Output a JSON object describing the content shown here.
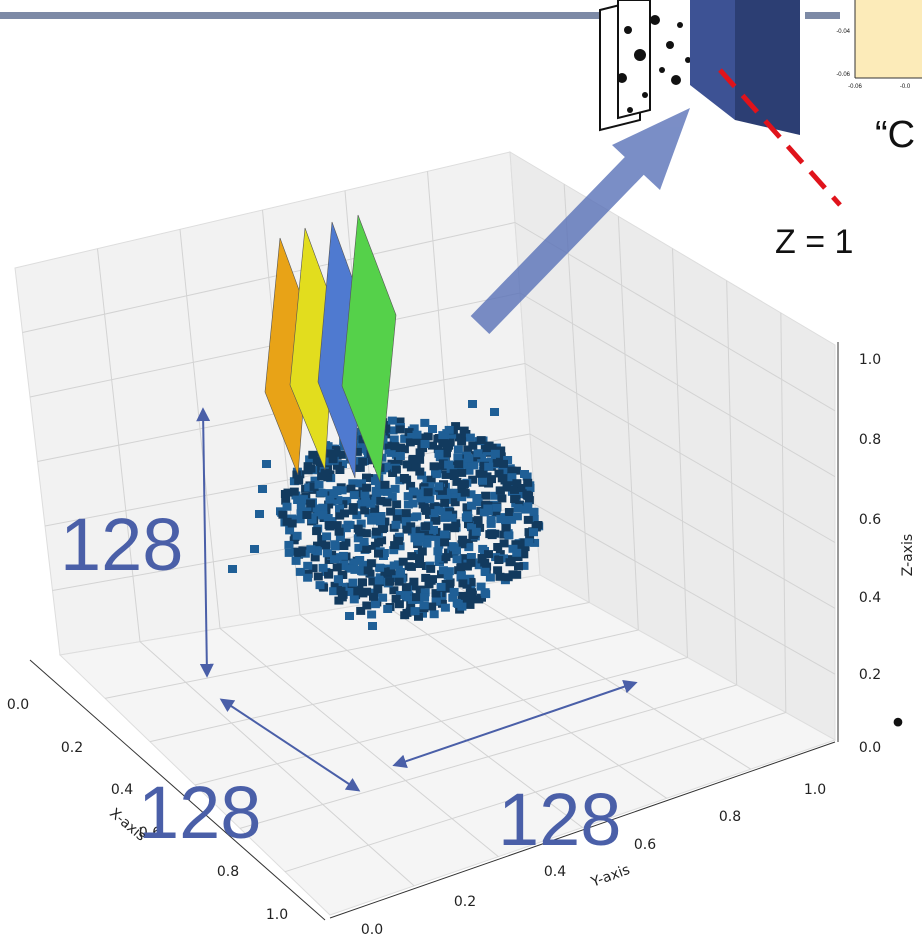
{
  "inset": {
    "ytick_top": "-0.04",
    "ytick_bottom": "-0.06",
    "xtick_left": "-0.06",
    "xtick_right": "-0.0"
  },
  "caption_fragment": "“C",
  "z_label": "Z = 1",
  "plot": {
    "x_axis_label": "X-axis",
    "y_axis_label": "Y-axis",
    "z_axis_label": "Z-axis",
    "x_ticks": [
      "0.0",
      "0.2",
      "0.4",
      "0.6",
      "0.8",
      "1.0"
    ],
    "y_ticks": [
      "0.0",
      "0.2",
      "0.4",
      "0.6",
      "0.8",
      "1.0"
    ],
    "z_ticks": [
      "0.0",
      "0.2",
      "0.4",
      "0.6",
      "0.8",
      "1.0"
    ]
  },
  "dimensions": [
    "128",
    "128",
    "128"
  ],
  "bullet": "•"
}
